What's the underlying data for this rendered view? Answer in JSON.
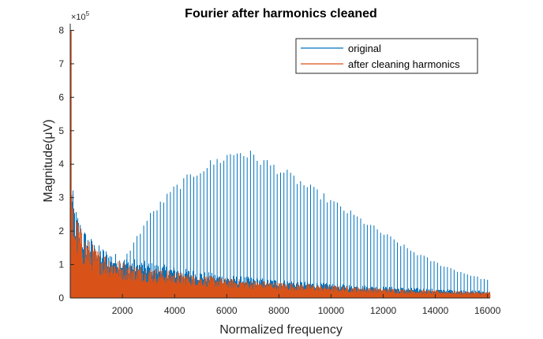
{
  "chart_data": {
    "type": "line",
    "title": "Fourier after harmonics cleaned",
    "xlabel": "Normalized frequency",
    "ylabel": "Magnitude(μV)",
    "y_exponent_label": "×10",
    "y_exponent_power": "5",
    "xlim": [
      0,
      16100
    ],
    "ylim": [
      0,
      820000
    ],
    "x_ticks": [
      2000,
      4000,
      6000,
      8000,
      10000,
      12000,
      14000,
      16000
    ],
    "x_tick_labels": [
      "2000",
      "4000",
      "6000",
      "8000",
      "10000",
      "12000",
      "14000",
      "16000"
    ],
    "y_ticks": [
      0,
      100000,
      200000,
      300000,
      400000,
      500000,
      600000,
      700000,
      800000
    ],
    "y_tick_labels": [
      "0",
      "1",
      "2",
      "3",
      "4",
      "5",
      "6",
      "7",
      "8"
    ],
    "legend": {
      "placement": "top-right"
    },
    "series": [
      {
        "name": "original",
        "color": "#0072BD",
        "peak": 800000,
        "harmonic_spacing": 128,
        "harmonic_envelope": [
          [
            1500,
            75000
          ],
          [
            2000,
            110000
          ],
          [
            3000,
            250000
          ],
          [
            4000,
            340000
          ],
          [
            5000,
            400000
          ],
          [
            6000,
            440000
          ],
          [
            6500,
            455000
          ],
          [
            7000,
            440000
          ],
          [
            8000,
            400000
          ],
          [
            9000,
            350000
          ],
          [
            10000,
            300000
          ],
          [
            11000,
            250000
          ],
          [
            12000,
            200000
          ],
          [
            13000,
            150000
          ],
          [
            14000,
            110000
          ],
          [
            15000,
            80000
          ],
          [
            16000,
            55000
          ]
        ],
        "baseline_envelope": [
          [
            0,
            430000
          ],
          [
            50,
            280000
          ],
          [
            200,
            220000
          ],
          [
            500,
            170000
          ],
          [
            1000,
            130000
          ],
          [
            2000,
            100000
          ],
          [
            4000,
            75000
          ],
          [
            6000,
            55000
          ],
          [
            8000,
            45000
          ],
          [
            10000,
            35000
          ],
          [
            12000,
            28000
          ],
          [
            14000,
            22000
          ],
          [
            16000,
            18000
          ]
        ]
      },
      {
        "name": "after cleaning harmonics",
        "color": "#D95319",
        "peak": 800000,
        "baseline_envelope": [
          [
            0,
            430000
          ],
          [
            50,
            280000
          ],
          [
            200,
            220000
          ],
          [
            500,
            170000
          ],
          [
            1000,
            130000
          ],
          [
            2000,
            95000
          ],
          [
            4000,
            70000
          ],
          [
            6000,
            52000
          ],
          [
            8000,
            42000
          ],
          [
            10000,
            33000
          ],
          [
            12000,
            26000
          ],
          [
            14000,
            20000
          ],
          [
            16000,
            16000
          ]
        ]
      }
    ]
  }
}
